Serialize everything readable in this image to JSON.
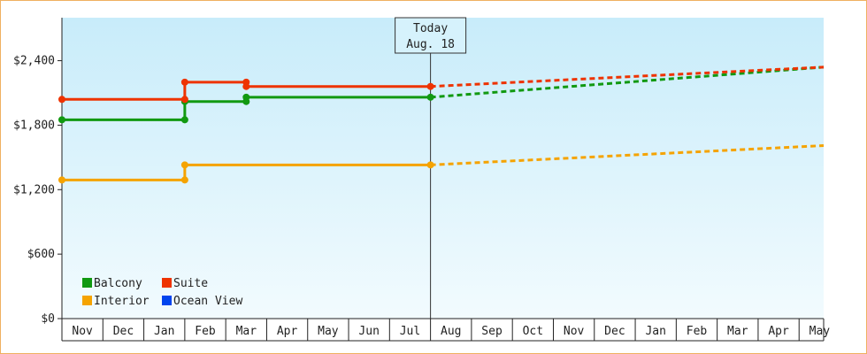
{
  "chart_data": {
    "type": "line",
    "title": "",
    "xlabel": "",
    "ylabel": "",
    "ylim": [
      0,
      2800
    ],
    "y_ticks": [
      "$0",
      "$600",
      "$1,200",
      "$1,800",
      "$2,400"
    ],
    "y_tick_values": [
      0,
      600,
      1200,
      1800,
      2400
    ],
    "months": [
      "Nov",
      "Dec",
      "Jan",
      "Feb",
      "Mar",
      "Apr",
      "May",
      "Jun",
      "Jul",
      "Aug",
      "Sep",
      "Oct",
      "Nov",
      "Dec",
      "Jan",
      "Feb",
      "Mar",
      "Apr",
      "May"
    ],
    "x_domain_months": [
      0,
      18.6
    ],
    "today": {
      "line1": "Today",
      "line2": "Aug. 18",
      "x": 9.0
    },
    "series": [
      {
        "name": "Balcony",
        "color": "#119911",
        "history": [
          [
            0,
            1850
          ],
          [
            3.0,
            1850
          ],
          [
            3.0,
            2020
          ],
          [
            4.5,
            2020
          ],
          [
            4.5,
            2060
          ],
          [
            9.0,
            2060
          ]
        ],
        "points": [
          [
            0,
            1850
          ],
          [
            3.0,
            1850
          ],
          [
            3.0,
            2020
          ],
          [
            4.5,
            2020
          ],
          [
            4.5,
            2060
          ],
          [
            9.0,
            2060
          ]
        ],
        "forecast": [
          [
            9.0,
            2060
          ],
          [
            18.6,
            2340
          ]
        ]
      },
      {
        "name": "Suite",
        "color": "#ee3300",
        "history": [
          [
            0,
            2040
          ],
          [
            3.0,
            2040
          ],
          [
            3.0,
            2200
          ],
          [
            4.5,
            2200
          ],
          [
            4.5,
            2160
          ],
          [
            9.0,
            2160
          ]
        ],
        "points": [
          [
            0,
            2040
          ],
          [
            3.0,
            2040
          ],
          [
            3.0,
            2200
          ],
          [
            4.5,
            2200
          ],
          [
            4.5,
            2160
          ],
          [
            9.0,
            2160
          ]
        ],
        "forecast": [
          [
            9.0,
            2160
          ],
          [
            18.6,
            2340
          ]
        ]
      },
      {
        "name": "Interior",
        "color": "#f5a300",
        "history": [
          [
            0,
            1290
          ],
          [
            3.0,
            1290
          ],
          [
            3.0,
            1430
          ],
          [
            9.0,
            1430
          ]
        ],
        "points": [
          [
            0,
            1290
          ],
          [
            3.0,
            1290
          ],
          [
            3.0,
            1430
          ],
          [
            9.0,
            1430
          ]
        ],
        "forecast": [
          [
            9.0,
            1430
          ],
          [
            18.6,
            1610
          ]
        ]
      },
      {
        "name": "Ocean View",
        "color": "#0044ee",
        "history": [],
        "points": [],
        "forecast": []
      }
    ],
    "legend_position": "bottom-left",
    "grid": false
  }
}
